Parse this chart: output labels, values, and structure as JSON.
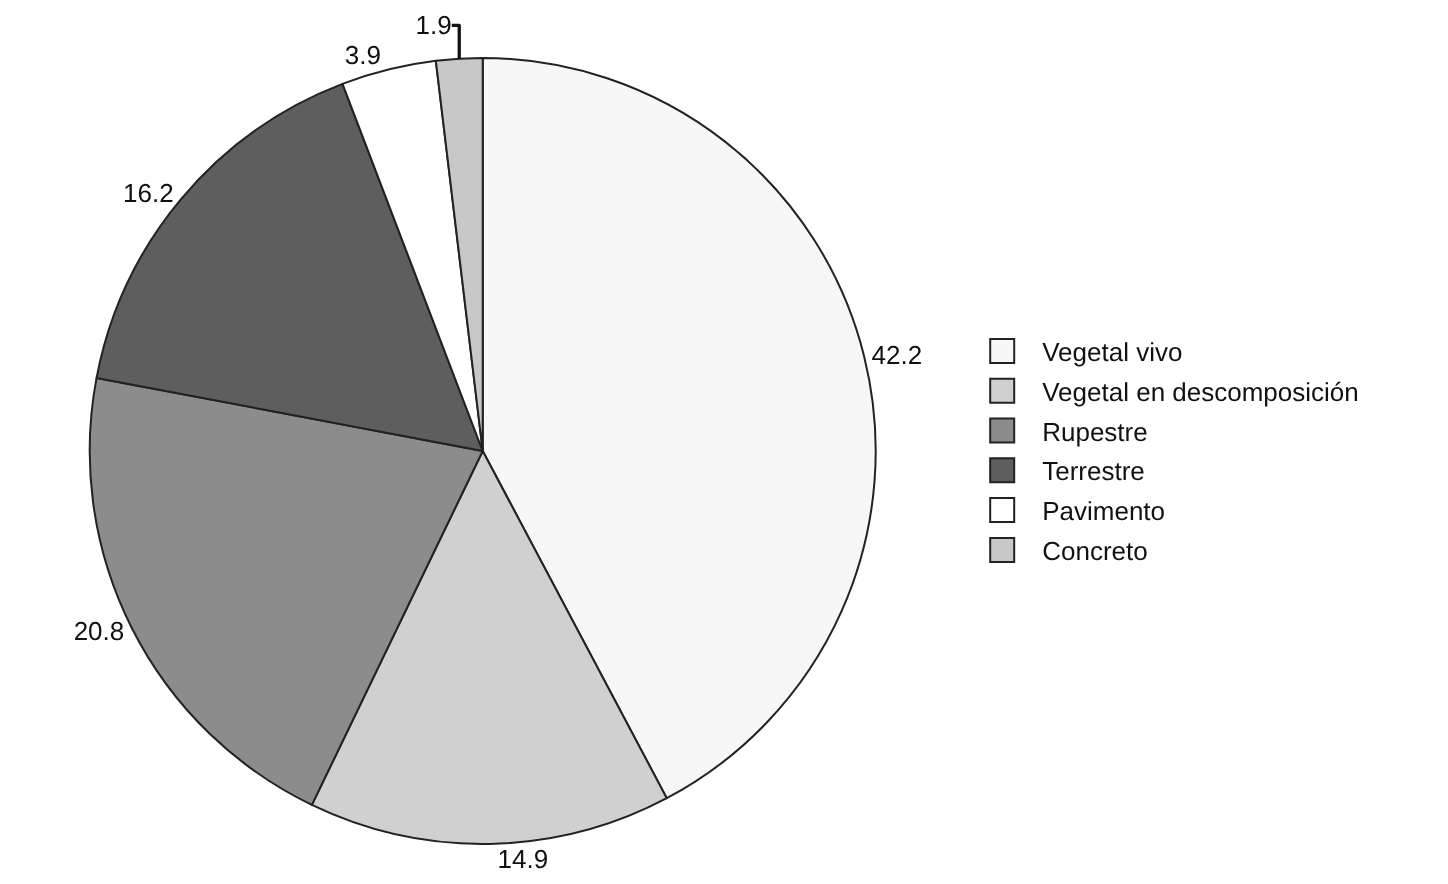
{
  "chart_data": {
    "type": "pie",
    "categories": [
      "Vegetal vivo",
      "Vegetal en descomposición",
      "Rupestre",
      "Terrestre",
      "Pavimento",
      "Concreto"
    ],
    "values": [
      42.2,
      14.9,
      20.8,
      16.2,
      3.9,
      1.9
    ],
    "colors": [
      "#f7f7f7",
      "#d0d0d0",
      "#8c8c8c",
      "#5e5e5e",
      "#ffffff",
      "#c8c8c8"
    ],
    "data_labels": true,
    "legend": "right"
  }
}
